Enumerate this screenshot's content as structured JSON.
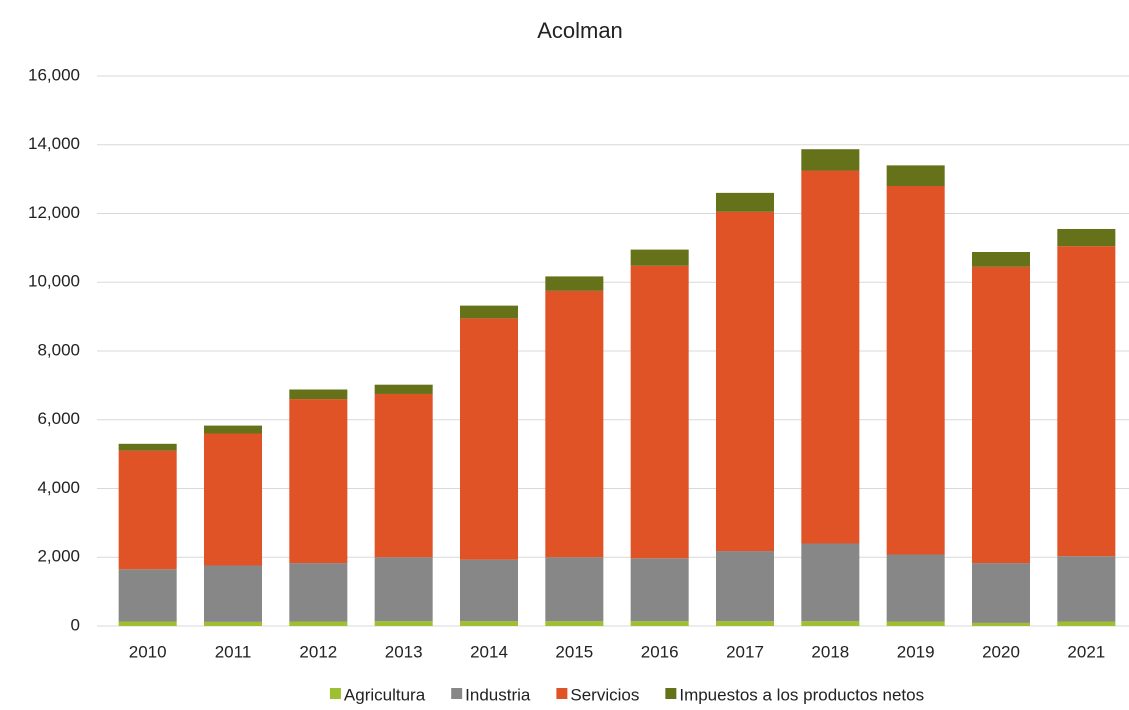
{
  "chart_data": {
    "type": "stacked_bar",
    "title": "Acolman",
    "categories": [
      "2010",
      "2011",
      "2012",
      "2013",
      "2014",
      "2015",
      "2016",
      "2017",
      "2018",
      "2019",
      "2020",
      "2021"
    ],
    "series": [
      {
        "name": "Agricultura",
        "color": "#9dbf30",
        "values": [
          130,
          120,
          130,
          140,
          140,
          140,
          140,
          140,
          140,
          130,
          90,
          130
        ]
      },
      {
        "name": "Industria",
        "color": "#878787",
        "values": [
          1520,
          1640,
          1700,
          1860,
          1790,
          1860,
          1830,
          2040,
          2260,
          1950,
          1740,
          1900
        ]
      },
      {
        "name": "Servicios",
        "color": "#e05327",
        "values": [
          3450,
          3840,
          4770,
          4750,
          7020,
          7750,
          8510,
          9870,
          10850,
          10720,
          8620,
          9020
        ]
      },
      {
        "name": "Impuestos a los productos netos",
        "color": "#65721a",
        "values": [
          200,
          230,
          280,
          270,
          370,
          420,
          470,
          550,
          620,
          600,
          430,
          500
        ]
      }
    ],
    "ylim": [
      0,
      16000
    ],
    "yticks": [
      0,
      {
        "value": 2000,
        "label": "2,000"
      },
      {
        "value": 4000,
        "label": "4,000"
      },
      {
        "value": 6000,
        "label": "6,000"
      },
      {
        "value": 8000,
        "label": "8,000"
      },
      {
        "value": 10000,
        "label": "10,000"
      },
      {
        "value": 12000,
        "label": "12,000"
      },
      {
        "value": 14000,
        "label": "14,000"
      },
      {
        "value": 16000,
        "label": "16,000"
      }
    ],
    "grid": true,
    "legend": "bottom"
  }
}
